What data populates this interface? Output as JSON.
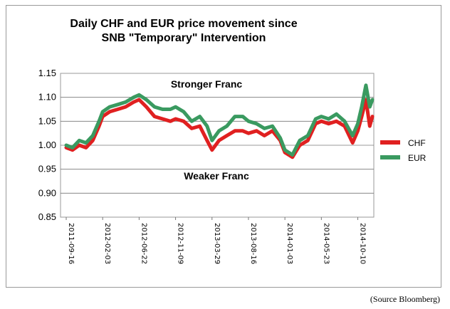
{
  "chart_data": {
    "type": "line",
    "title_lines": [
      "Daily CHF and EUR price movement since",
      "SNB \"Temporary\" Intervention"
    ],
    "xlabel": "",
    "ylabel": "",
    "ylim": [
      0.85,
      1.15
    ],
    "yticks": [
      "1.15",
      "1.10",
      "1.05",
      "1.00",
      "0.95",
      "0.90",
      "0.85"
    ],
    "grid": "horizontal",
    "legend_position": "right",
    "annotations": [
      "Stronger Franc",
      "Weaker Franc"
    ],
    "x": [
      "2011-09-16",
      "2011-10-10",
      "2011-11-05",
      "2011-12-01",
      "2011-12-27",
      "2012-01-20",
      "2012-02-03",
      "2012-03-01",
      "2012-04-01",
      "2012-05-01",
      "2012-06-01",
      "2012-06-22",
      "2012-07-20",
      "2012-08-20",
      "2012-09-20",
      "2012-10-20",
      "2012-11-09",
      "2012-12-10",
      "2013-01-10",
      "2013-02-10",
      "2013-03-10",
      "2013-03-29",
      "2013-04-25",
      "2013-05-25",
      "2013-06-25",
      "2013-07-25",
      "2013-08-16",
      "2013-09-16",
      "2013-10-16",
      "2013-11-16",
      "2013-12-16",
      "2014-01-03",
      "2014-02-01",
      "2014-03-01",
      "2014-04-01",
      "2014-05-01",
      "2014-05-23",
      "2014-06-20",
      "2014-07-20",
      "2014-08-20",
      "2014-09-20",
      "2014-10-10",
      "2014-10-25",
      "2014-11-10",
      "2014-11-25",
      "2014-12-05"
    ],
    "x_tick_labels": [
      "2011-09-16",
      "2012-02-03",
      "2012-06-22",
      "2012-11-09",
      "2013-03-29",
      "2013-08-16",
      "2014-01-03",
      "2014-05-23",
      "2014-10-10"
    ],
    "series": [
      {
        "name": "CHF",
        "color": "#e02020",
        "values": [
          0.995,
          0.99,
          1.0,
          0.995,
          1.01,
          1.04,
          1.06,
          1.07,
          1.075,
          1.08,
          1.09,
          1.095,
          1.08,
          1.06,
          1.055,
          1.05,
          1.055,
          1.05,
          1.035,
          1.04,
          1.01,
          0.99,
          1.01,
          1.02,
          1.03,
          1.03,
          1.025,
          1.03,
          1.02,
          1.03,
          1.01,
          0.985,
          0.975,
          1.0,
          1.01,
          1.045,
          1.05,
          1.045,
          1.05,
          1.04,
          1.005,
          1.03,
          1.06,
          1.095,
          1.04,
          1.06
        ]
      },
      {
        "name": "EUR",
        "color": "#3a9a60",
        "values": [
          1.0,
          0.995,
          1.01,
          1.005,
          1.02,
          1.05,
          1.07,
          1.08,
          1.085,
          1.09,
          1.1,
          1.105,
          1.095,
          1.08,
          1.075,
          1.075,
          1.08,
          1.07,
          1.05,
          1.06,
          1.04,
          1.01,
          1.03,
          1.04,
          1.06,
          1.06,
          1.05,
          1.045,
          1.035,
          1.04,
          1.015,
          0.99,
          0.98,
          1.01,
          1.02,
          1.055,
          1.06,
          1.055,
          1.065,
          1.05,
          1.02,
          1.045,
          1.08,
          1.125,
          1.08,
          1.095
        ]
      }
    ]
  },
  "source_note": "(Source Bloomberg)"
}
